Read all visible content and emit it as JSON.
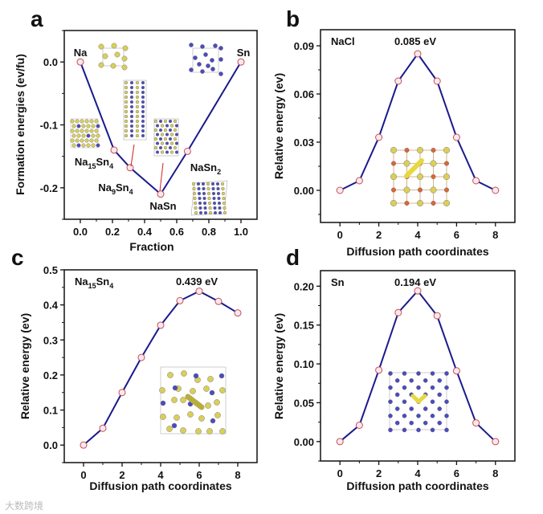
{
  "colors": {
    "line": "#1a1a8c",
    "marker_fill": "#fde8ec",
    "marker_edge": "#c0505a",
    "na_atom": "#d9cf5a",
    "sn_atom": "#4b4bc0",
    "cl_atom": "#d9663a",
    "pointer": "#d02020"
  },
  "watermark": "大数跨境",
  "chart_data": [
    {
      "panel": "a",
      "type": "line",
      "x": [
        0.0,
        0.21,
        0.31,
        0.5,
        0.667,
        1.0
      ],
      "values": [
        0.0,
        -0.14,
        -0.168,
        -0.21,
        -0.142,
        0.0
      ],
      "xlabel": "Fraction",
      "ylabel": "Formation energies (ev/fu)",
      "xlim": [
        -0.1,
        1.1
      ],
      "ylim": [
        -0.25,
        0.05
      ],
      "xticks": [
        "0.0",
        "0.2",
        "0.4",
        "0.6",
        "0.8",
        "1.0"
      ],
      "yticks": [
        "0.0",
        "-0.1",
        "-0.2"
      ],
      "point_labels": [
        [
          [
            "Na",
            ""
          ]
        ],
        [
          [
            "Na",
            ""
          ],
          [
            "15",
            "sub"
          ],
          [
            "Sn",
            ""
          ],
          [
            "4",
            "sub"
          ]
        ],
        [
          [
            "Na",
            ""
          ],
          [
            "9",
            "sub"
          ],
          [
            "Sn",
            ""
          ],
          [
            "4",
            "sub"
          ]
        ],
        [
          [
            "NaSn",
            ""
          ]
        ],
        [
          [
            "NaSn",
            ""
          ],
          [
            "2",
            "sub"
          ]
        ],
        [
          [
            "Sn",
            ""
          ]
        ]
      ]
    },
    {
      "panel": "b",
      "type": "line",
      "label": "NaCl",
      "annotation": "0.085 eV",
      "x": [
        0,
        1,
        2,
        3,
        4,
        5,
        6,
        7,
        8
      ],
      "values": [
        0.0,
        0.006,
        0.033,
        0.068,
        0.085,
        0.068,
        0.033,
        0.006,
        0.0
      ],
      "xlabel": "Diffusion path coordinates",
      "ylabel": "Relative energy (ev)",
      "xlim": [
        -1,
        9
      ],
      "ylim": [
        -0.02,
        0.1
      ],
      "xticks": [
        "0",
        "2",
        "4",
        "6",
        "8"
      ],
      "yticks": [
        "0.00",
        "0.03",
        "0.06",
        "0.09"
      ]
    },
    {
      "panel": "c",
      "type": "line",
      "label": [
        [
          "Na",
          ""
        ],
        [
          "15",
          "sub"
        ],
        [
          "Sn",
          ""
        ],
        [
          "4",
          "sub"
        ]
      ],
      "annotation": "0.439 eV",
      "x": [
        0,
        1,
        2,
        3,
        4,
        5,
        6,
        7,
        8
      ],
      "values": [
        0.0,
        0.048,
        0.15,
        0.25,
        0.342,
        0.412,
        0.439,
        0.41,
        0.377
      ],
      "xlabel": "Diffusion path coordinates",
      "ylabel": "Relative energy (ev)",
      "xlim": [
        -1,
        9
      ],
      "ylim": [
        -0.05,
        0.5
      ],
      "xticks": [
        "0",
        "2",
        "4",
        "6",
        "8"
      ],
      "yticks": [
        "0.0",
        "0.1",
        "0.2",
        "0.3",
        "0.4",
        "0.5"
      ]
    },
    {
      "panel": "d",
      "type": "line",
      "label": "Sn",
      "annotation": "0.194 eV",
      "x": [
        0,
        1,
        2,
        3,
        4,
        5,
        6,
        7,
        8
      ],
      "values": [
        0.0,
        0.021,
        0.092,
        0.166,
        0.194,
        0.162,
        0.091,
        0.024,
        0.0
      ],
      "xlabel": "Diffusion path coordinates",
      "ylabel": "Relative energy (ev)",
      "xlim": [
        -1,
        9
      ],
      "ylim": [
        -0.025,
        0.22
      ],
      "xticks": [
        "0",
        "2",
        "4",
        "6",
        "8"
      ],
      "yticks": [
        "0.00",
        "0.05",
        "0.10",
        "0.15",
        "0.20"
      ]
    }
  ]
}
